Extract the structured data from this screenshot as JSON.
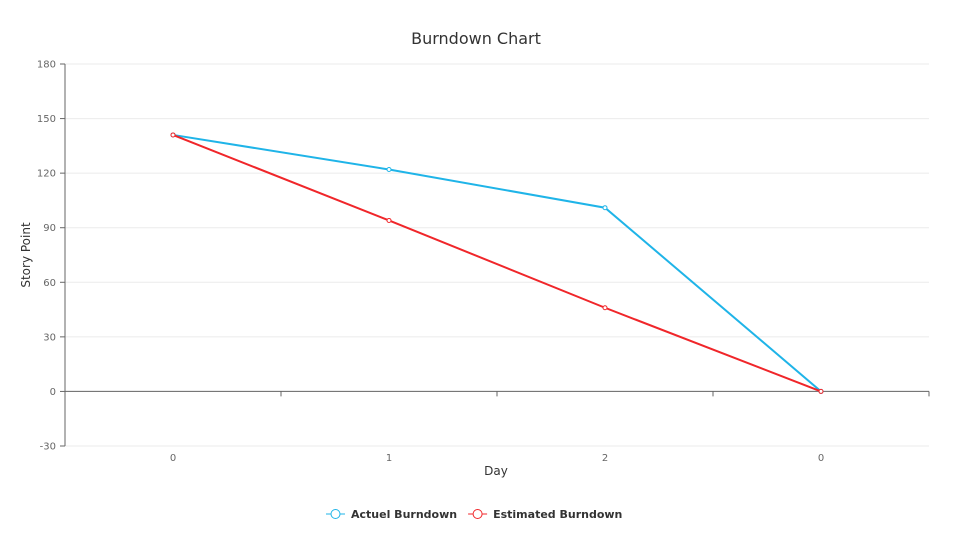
{
  "chart_data": {
    "type": "line",
    "title": "Burndown Chart",
    "xlabel": "Day",
    "ylabel": "Story Point",
    "categories": [
      "0",
      "1",
      "2",
      "0"
    ],
    "ylim": [
      -30,
      180
    ],
    "yticks": [
      -30,
      0,
      30,
      60,
      90,
      120,
      150,
      180
    ],
    "grid": true,
    "legend_position": "bottom",
    "series": [
      {
        "name": "Actuel Burndown",
        "color": "#1fb4e8",
        "values": [
          141,
          122,
          101,
          0
        ]
      },
      {
        "name": "Estimated Burndown",
        "color": "#f0262a",
        "values": [
          141,
          94,
          46,
          0
        ]
      }
    ]
  }
}
